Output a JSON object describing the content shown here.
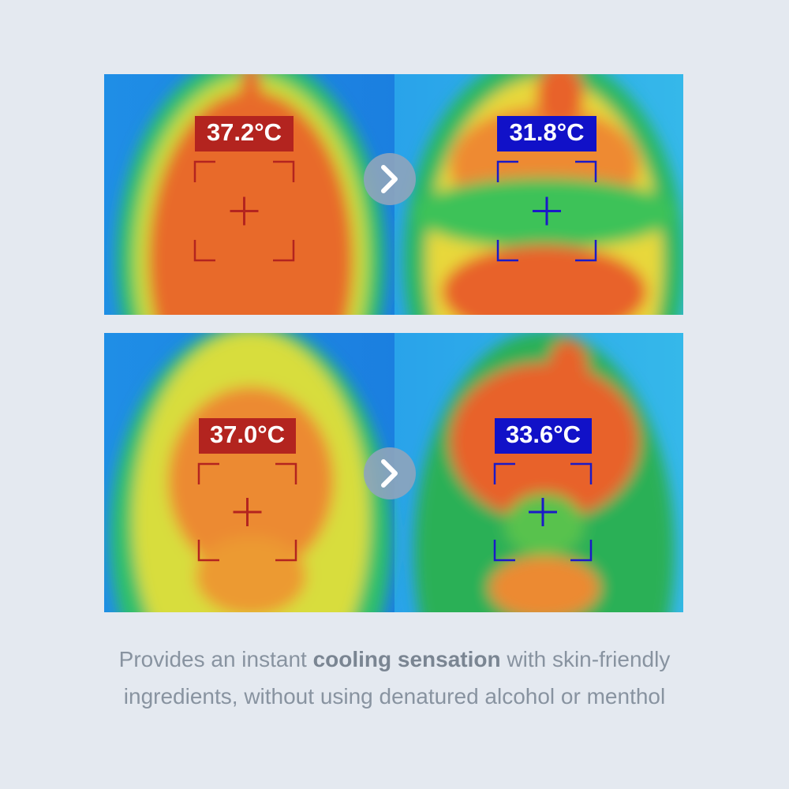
{
  "panels": [
    {
      "before": "37.2°C",
      "after": "31.8°C"
    },
    {
      "before": "37.0°C",
      "after": "33.6°C"
    }
  ],
  "caption": {
    "line1": [
      "Provides an instant",
      "cooling sensation",
      "with skin-friendly"
    ],
    "line2": "ingredients, without using denatured alcohol or menthol"
  }
}
